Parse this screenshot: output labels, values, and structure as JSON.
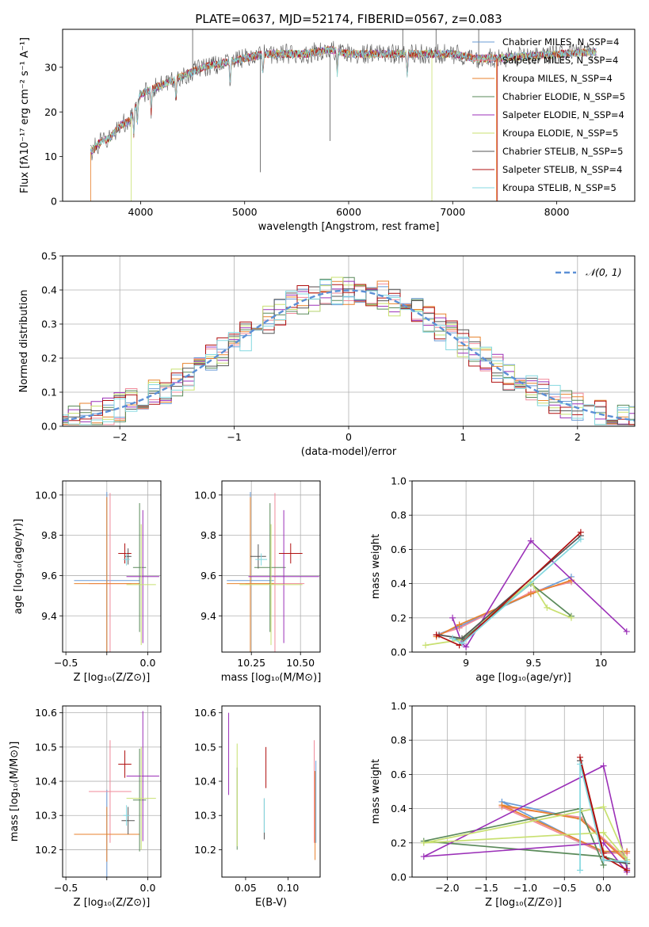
{
  "figure": {
    "title": "PLATE=0637, MJD=52174, FIBERID=0567, z=0.083"
  },
  "series_colors": [
    "#6a9bd6",
    "#f08a9a",
    "#e8822c",
    "#5a8a5a",
    "#9b30b8",
    "#c8e070",
    "#555555",
    "#b01010",
    "#84d8e0"
  ],
  "chart_data": [
    {
      "id": "spectrum",
      "type": "line",
      "xlabel": "wavelength [Angstrom, rest frame]",
      "ylabel": "Flux [fλ10⁻¹⁷ erg cm⁻² s⁻¹ A⁻¹]",
      "xlim": [
        3250,
        8750
      ],
      "ylim": [
        0,
        38.5
      ],
      "xticks": [
        4000,
        5000,
        6000,
        7000,
        8000
      ],
      "yticks": [
        0,
        10,
        20,
        30
      ],
      "grid": false,
      "legend_position": "right",
      "series": [
        {
          "name": "Chabrier MILES, N_SSP=4"
        },
        {
          "name": "Salpeter MILES, N_SSP=4"
        },
        {
          "name": "Kroupa MILES, N_SSP=4"
        },
        {
          "name": "Chabrier ELODIE, N_SSP=5"
        },
        {
          "name": "Salpeter ELODIE, N_SSP=4"
        },
        {
          "name": "Kroupa ELODIE, N_SSP=5"
        },
        {
          "name": "Chabrier STELIB, N_SSP=5"
        },
        {
          "name": "Salpeter STELIB, N_SSP=4"
        },
        {
          "name": "Kroupa STELIB, N_SSP=5"
        }
      ],
      "continuum": {
        "x": [
          3520,
          3600,
          3700,
          3800,
          3900,
          4000,
          4100,
          4200,
          4400,
          4600,
          4800,
          5000,
          5200,
          5400,
          5600,
          5800,
          6000,
          6200,
          6400,
          6600,
          6800,
          7000,
          7200,
          7400
        ],
        "y": [
          11,
          13,
          14,
          17,
          18,
          24,
          25,
          26,
          28,
          30,
          31,
          32,
          33,
          33,
          33,
          34,
          33,
          33,
          33,
          33,
          33,
          33,
          32,
          32
        ]
      },
      "data_extent": [
        3520,
        8380
      ]
    },
    {
      "id": "residuals",
      "type": "step",
      "xlabel": "(data-model)/error",
      "ylabel": "Normed distribution",
      "xlim": [
        -2.5,
        2.5
      ],
      "ylim": [
        0,
        0.5
      ],
      "xticks": [
        -2,
        -1,
        0,
        1,
        2
      ],
      "yticks": [
        0.0,
        0.1,
        0.2,
        0.3,
        0.4,
        0.5
      ],
      "grid": true,
      "legend_position": "top-right",
      "reference_curve": {
        "name": "𝒩(0, 1)",
        "mean": 0,
        "sigma": 1,
        "color": "#5b8fd6"
      }
    },
    {
      "id": "age-vs-Z",
      "type": "errorbar",
      "xlabel": "Z [log₁₀(Z/Z⊙)]",
      "ylabel": "age  [log₁₀(age/yr)]",
      "xlim": [
        -0.52,
        0.08
      ],
      "ylim": [
        9.22,
        10.07
      ],
      "xticks": [
        -0.5,
        -0.25,
        0.0
      ],
      "xticklabels": [
        "−0.5",
        "",
        "0.0"
      ],
      "yticks": [
        9.4,
        9.6,
        9.8,
        10.0
      ],
      "grid": true,
      "points": [
        {
          "x": -0.25,
          "xerr": 0.2,
          "y": 9.575,
          "yerr": 0.44
        },
        {
          "x": -0.23,
          "xerr": 0.13,
          "y": 9.56,
          "yerr": 0.45
        },
        {
          "x": -0.25,
          "xerr": 0.2,
          "y": 9.56,
          "yerr": 0.43
        },
        {
          "x": -0.05,
          "xerr": 0.04,
          "y": 9.64,
          "yerr": 0.32
        },
        {
          "x": -0.03,
          "xerr": 0.1,
          "y": 9.595,
          "yerr": 0.33
        },
        {
          "x": -0.04,
          "xerr": 0.09,
          "y": 9.555,
          "yerr": 0.3
        },
        {
          "x": -0.12,
          "xerr": 0.02,
          "y": 9.695,
          "yerr": 0.04
        },
        {
          "x": -0.14,
          "xerr": 0.04,
          "y": 9.71,
          "yerr": 0.05
        },
        {
          "x": -0.13,
          "xerr": 0.02,
          "y": 9.68,
          "yerr": 0.03
        }
      ]
    },
    {
      "id": "age-vs-mass",
      "type": "errorbar",
      "xlabel": "mass [log₁₀(M/M⊙)]",
      "xlim": [
        10.1,
        10.6
      ],
      "ylim": [
        9.22,
        10.07
      ],
      "xticks": [
        10.25,
        10.5
      ],
      "xticklabels": [
        "10.25",
        "10.50"
      ],
      "yticks": [
        9.4,
        9.6,
        9.8,
        10.0
      ],
      "grid": true,
      "points": [
        {
          "x": 10.245,
          "xerr": 0.12,
          "y": 9.575,
          "yerr": 0.44
        },
        {
          "x": 10.37,
          "xerr": 0.15,
          "y": 9.56,
          "yerr": 0.45
        },
        {
          "x": 10.245,
          "xerr": 0.12,
          "y": 9.56,
          "yerr": 0.43
        },
        {
          "x": 10.345,
          "xerr": 0.08,
          "y": 9.64,
          "yerr": 0.32
        },
        {
          "x": 10.415,
          "xerr": 0.18,
          "y": 9.595,
          "yerr": 0.33
        },
        {
          "x": 10.35,
          "xerr": 0.16,
          "y": 9.555,
          "yerr": 0.3
        },
        {
          "x": 10.285,
          "xerr": 0.04,
          "y": 9.695,
          "yerr": 0.06
        },
        {
          "x": 10.45,
          "xerr": 0.06,
          "y": 9.71,
          "yerr": 0.05
        },
        {
          "x": 10.3,
          "xerr": 0.03,
          "y": 9.68,
          "yerr": 0.03
        }
      ]
    },
    {
      "id": "weight-vs-age",
      "type": "line",
      "xlabel": "age  [log₁₀(age/yr)]",
      "ylabel": "mass weight",
      "xlim": [
        8.6,
        10.25
      ],
      "ylim": [
        0,
        1
      ],
      "xticks": [
        9.0,
        9.5,
        10.0
      ],
      "yticks": [
        0.0,
        0.2,
        0.4,
        0.6,
        0.8,
        1.0
      ],
      "grid": true,
      "series": [
        {
          "x": [
            8.78,
            8.95,
            9.48,
            9.78
          ],
          "y": [
            0.1,
            0.15,
            0.34,
            0.44
          ]
        },
        {
          "x": [
            8.78,
            8.95,
            9.48,
            9.78
          ],
          "y": [
            0.1,
            0.14,
            0.35,
            0.41
          ]
        },
        {
          "x": [
            8.78,
            8.95,
            9.48,
            9.78
          ],
          "y": [
            0.09,
            0.16,
            0.34,
            0.42
          ]
        },
        {
          "x": [
            8.9,
            8.97,
            9.48,
            9.78
          ],
          "y": [
            0.08,
            0.07,
            0.4,
            0.21
          ]
        },
        {
          "x": [
            8.9,
            8.97,
            9.0,
            9.48,
            10.19
          ],
          "y": [
            0.2,
            0.05,
            0.03,
            0.65,
            0.12
          ]
        },
        {
          "x": [
            8.7,
            8.95,
            9.48,
            9.6,
            9.78
          ],
          "y": [
            0.04,
            0.07,
            0.41,
            0.26,
            0.2
          ]
        },
        {
          "x": [
            8.8,
            8.97,
            9.85
          ],
          "y": [
            0.1,
            0.08,
            0.68
          ]
        },
        {
          "x": [
            8.78,
            8.95,
            9.85
          ],
          "y": [
            0.1,
            0.04,
            0.7
          ]
        },
        {
          "x": [
            8.9,
            8.97,
            9.85
          ],
          "y": [
            0.08,
            0.05,
            0.66
          ]
        }
      ]
    },
    {
      "id": "mass-vs-Z",
      "type": "errorbar",
      "xlabel": "Z [log₁₀(Z/Z⊙)]",
      "ylabel": "mass [log₁₀(M/M⊙)]",
      "xlim": [
        -0.52,
        0.08
      ],
      "ylim": [
        10.12,
        10.62
      ],
      "xticks": [
        -0.5,
        -0.25,
        0.0
      ],
      "xticklabels": [
        "−0.5",
        "",
        "0.0"
      ],
      "yticks": [
        10.2,
        10.3,
        10.4,
        10.5,
        10.6
      ],
      "grid": true,
      "points": [
        {
          "x": -0.25,
          "xerr": 0.2,
          "y": 10.245,
          "yerr": 0.13
        },
        {
          "x": -0.23,
          "xerr": 0.13,
          "y": 10.37,
          "yerr": 0.15
        },
        {
          "x": -0.25,
          "xerr": 0.2,
          "y": 10.245,
          "yerr": 0.08
        },
        {
          "x": -0.05,
          "xerr": 0.04,
          "y": 10.345,
          "yerr": 0.15
        },
        {
          "x": -0.03,
          "xerr": 0.1,
          "y": 10.415,
          "yerr": 0.19
        },
        {
          "x": -0.04,
          "xerr": 0.09,
          "y": 10.35,
          "yerr": 0.15
        },
        {
          "x": -0.12,
          "xerr": 0.04,
          "y": 10.285,
          "yerr": 0.04
        },
        {
          "x": -0.14,
          "xerr": 0.04,
          "y": 10.45,
          "yerr": 0.04
        },
        {
          "x": -0.13,
          "xerr": 0.02,
          "y": 10.3,
          "yerr": 0.03
        }
      ]
    },
    {
      "id": "mass-vs-EBV",
      "type": "errorbar",
      "xlabel": "E(B-V)",
      "xlim": [
        0.022,
        0.138
      ],
      "ylim": [
        10.12,
        10.62
      ],
      "xticks": [
        0.05,
        0.1
      ],
      "xticklabels": [
        "0.05",
        "0.10"
      ],
      "yticks": [
        10.2,
        10.3,
        10.4,
        10.5,
        10.6
      ],
      "grid": false,
      "points": [
        {
          "x": 0.133,
          "y": 10.34,
          "yerr": 0.12
        },
        {
          "x": 0.131,
          "y": 10.37,
          "yerr": 0.15
        },
        {
          "x": 0.132,
          "y": 10.3,
          "yerr": 0.13
        },
        {
          "x": 0.04,
          "y": 10.32,
          "yerr": 0.12
        },
        {
          "x": 0.03,
          "y": 10.48,
          "yerr": 0.12
        },
        {
          "x": 0.04,
          "y": 10.36,
          "yerr": 0.15
        },
        {
          "x": 0.072,
          "y": 10.29,
          "yerr": 0.06
        },
        {
          "x": 0.074,
          "y": 10.44,
          "yerr": 0.06
        },
        {
          "x": 0.072,
          "y": 10.3,
          "yerr": 0.05
        }
      ]
    },
    {
      "id": "weight-vs-Z",
      "type": "line",
      "xlabel": "Z [log₁₀(Z/Z⊙)]",
      "ylabel": "mass weight",
      "xlim": [
        -2.45,
        0.4
      ],
      "ylim": [
        0,
        1
      ],
      "xticks": [
        -2.0,
        -1.5,
        -1.0,
        -0.5,
        0.0
      ],
      "xticklabels": [
        "−2.0",
        "−1.5",
        "−1.0",
        "−0.5",
        "0.0"
      ],
      "yticks": [
        0.0,
        0.2,
        0.4,
        0.6,
        0.8,
        1.0
      ],
      "grid": true,
      "series": [
        {
          "x": [
            0.3,
            0.0,
            -1.3,
            -0.3,
            0.3
          ],
          "y": [
            0.15,
            0.14,
            0.44,
            0.34,
            0.1
          ]
        },
        {
          "x": [
            0.3,
            0.0,
            -1.3,
            -0.3,
            0.3
          ],
          "y": [
            0.14,
            0.14,
            0.41,
            0.35,
            0.1
          ]
        },
        {
          "x": [
            0.3,
            0.0,
            -1.3,
            -0.3,
            0.3
          ],
          "y": [
            0.15,
            0.15,
            0.42,
            0.34,
            0.09
          ]
        },
        {
          "x": [
            0.3,
            0.0,
            -2.3,
            -0.3,
            0.0
          ],
          "y": [
            0.08,
            0.12,
            0.21,
            0.4,
            0.07
          ]
        },
        {
          "x": [
            0.3,
            0.0,
            -2.3,
            0.0,
            0.3
          ],
          "y": [
            0.03,
            0.2,
            0.12,
            0.65,
            0.05
          ]
        },
        {
          "x": [
            0.3,
            0.0,
            -2.3,
            0.0,
            0.3
          ],
          "y": [
            0.1,
            0.26,
            0.2,
            0.41,
            0.1
          ]
        },
        {
          "x": [
            0.3,
            0.0,
            -0.3,
            0.0
          ],
          "y": [
            0.08,
            0.1,
            0.68,
            0.12
          ]
        },
        {
          "x": [
            0.3,
            0.0,
            -0.3,
            0.0
          ],
          "y": [
            0.04,
            0.12,
            0.7,
            0.14
          ]
        },
        {
          "x": [
            0.3,
            0.0,
            -0.3,
            -0.3
          ],
          "y": [
            0.09,
            0.1,
            0.66,
            0.04
          ]
        }
      ]
    }
  ]
}
